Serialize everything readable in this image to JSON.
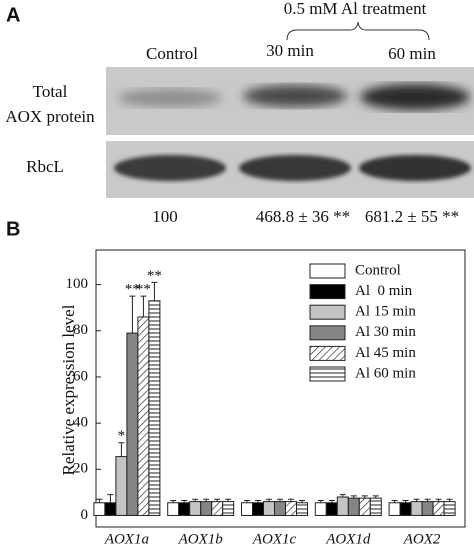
{
  "panel_a": {
    "label": "A",
    "treatment": "0.5 mM Al treatment",
    "lanes": [
      "Control",
      "30 min",
      "60 min"
    ],
    "rows": [
      [
        "Total",
        "AOX protein"
      ],
      [
        "RbcL"
      ]
    ],
    "quantification": [
      "100",
      "468.8 ± 36 **",
      "681.2 ± 55 **"
    ]
  },
  "chart_data": {
    "type": "bar",
    "label": "B",
    "y_label": "Relative expression level",
    "categories": [
      "AOX1a",
      "AOX1b",
      "AOX1c",
      "AOX1d",
      "AOX2"
    ],
    "ylim": [
      -5,
      115
    ],
    "yticks": [
      0,
      20,
      40,
      60,
      80,
      100
    ],
    "legend": "upper-right",
    "series": [
      {
        "name": "Control",
        "color": "#ffffff",
        "values": [
          5.5,
          5.5,
          5.5,
          5.5,
          5.5
        ],
        "errors": [
          1.5,
          1,
          1,
          1,
          1
        ]
      },
      {
        "name": "Al  0 min",
        "color": "#000000",
        "values": [
          5.5,
          5.5,
          5.5,
          5.5,
          5.5
        ],
        "errors": [
          3.5,
          1,
          1,
          1,
          1
        ]
      },
      {
        "name": "Al 15 min",
        "color": "#c4c4c4",
        "values": [
          25.5,
          6,
          6,
          8,
          6
        ],
        "errors": [
          6,
          1,
          1,
          1,
          1
        ],
        "significance": [
          "*",
          null,
          null,
          null,
          null
        ]
      },
      {
        "name": "Al 30 min",
        "color": "#858585",
        "values": [
          79,
          6,
          6,
          7.5,
          6
        ],
        "errors": [
          16,
          1,
          1,
          1,
          1
        ],
        "significance": [
          "**",
          null,
          null,
          null,
          null
        ]
      },
      {
        "name": "Al 45 min",
        "color": "#ffffff",
        "pattern": "hatch-diagonal",
        "values": [
          86,
          6,
          6,
          7.5,
          6
        ],
        "errors": [
          9,
          1,
          1,
          1,
          1
        ],
        "significance": [
          "**",
          null,
          null,
          null,
          null
        ]
      },
      {
        "name": "Al 60 min",
        "color": "#ffffff",
        "pattern": "hatch-horizontal",
        "values": [
          93,
          6,
          5.5,
          7.5,
          6
        ],
        "errors": [
          8,
          1,
          1,
          1,
          1
        ],
        "significance": [
          "**",
          null,
          null,
          null,
          null
        ]
      }
    ]
  }
}
